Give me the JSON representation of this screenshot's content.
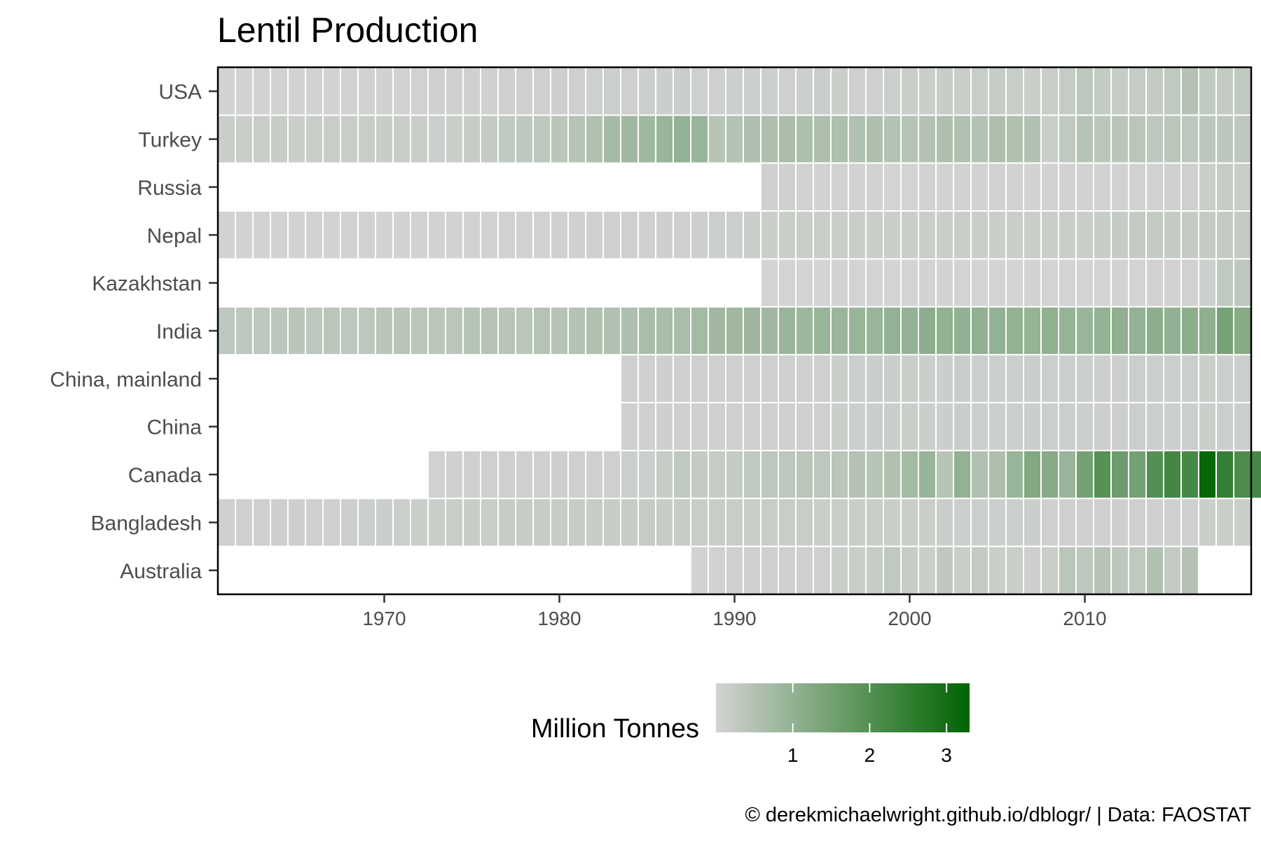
{
  "chart_data": {
    "type": "heatmap",
    "title": "Lentil Production",
    "caption": "© derekmichaelwright.github.io/dblogr/ | Data: FAOSTAT",
    "x_range": [
      1961,
      2019
    ],
    "x_ticks": [
      1970,
      1980,
      1990,
      2000,
      2010
    ],
    "countries": [
      "USA",
      "Turkey",
      "Russia",
      "Nepal",
      "Kazakhstan",
      "India",
      "China, mainland",
      "China",
      "Canada",
      "Bangladesh",
      "Australia"
    ],
    "colorbar": {
      "title": "Million Tonnes",
      "range": [
        0,
        3.3
      ],
      "ticks": [
        1,
        2,
        3
      ],
      "low_color": "#d3d3d3",
      "high_color": "#006400"
    },
    "grid": false,
    "series": [
      {
        "name": "USA",
        "start": 1961,
        "values": [
          0.02,
          0.03,
          0.02,
          0.03,
          0.03,
          0.03,
          0.03,
          0.03,
          0.04,
          0.04,
          0.05,
          0.05,
          0.06,
          0.06,
          0.07,
          0.07,
          0.08,
          0.08,
          0.09,
          0.09,
          0.1,
          0.1,
          0.12,
          0.1,
          0.12,
          0.12,
          0.14,
          0.1,
          0.1,
          0.12,
          0.12,
          0.13,
          0.1,
          0.12,
          0.14,
          0.12,
          0.1,
          0.1,
          0.12,
          0.15,
          0.15,
          0.18,
          0.14,
          0.18,
          0.2,
          0.18,
          0.15,
          0.16,
          0.22,
          0.35,
          0.25,
          0.2,
          0.22,
          0.25,
          0.3,
          0.5,
          0.28,
          0.25,
          0.29
        ]
      },
      {
        "name": "Turkey",
        "start": 1961,
        "values": [
          0.15,
          0.15,
          0.17,
          0.17,
          0.16,
          0.17,
          0.17,
          0.17,
          0.17,
          0.18,
          0.17,
          0.17,
          0.13,
          0.15,
          0.2,
          0.23,
          0.28,
          0.32,
          0.35,
          0.4,
          0.45,
          0.55,
          0.7,
          0.8,
          0.8,
          0.9,
          1.0,
          0.9,
          0.45,
          0.5,
          0.6,
          0.6,
          0.65,
          0.6,
          0.58,
          0.6,
          0.55,
          0.6,
          0.5,
          0.45,
          0.5,
          0.58,
          0.55,
          0.5,
          0.58,
          0.55,
          0.52,
          0.15,
          0.3,
          0.45,
          0.4,
          0.4,
          0.4,
          0.35,
          0.4,
          0.35,
          0.35,
          0.35,
          0.35
        ]
      },
      {
        "name": "Russia",
        "start": 1992,
        "values": [
          0.06,
          0.06,
          0.05,
          0.03,
          0.02,
          0.02,
          0.02,
          0.01,
          0.01,
          0.02,
          0.02,
          0.02,
          0.02,
          0.03,
          0.02,
          0.01,
          0.02,
          0.02,
          0.02,
          0.02,
          0.03,
          0.04,
          0.05,
          0.06,
          0.1,
          0.15,
          0.2,
          0.18
        ]
      },
      {
        "name": "Nepal",
        "start": 1961,
        "values": [
          0.02,
          0.02,
          0.02,
          0.02,
          0.02,
          0.02,
          0.02,
          0.02,
          0.02,
          0.02,
          0.02,
          0.02,
          0.02,
          0.02,
          0.03,
          0.03,
          0.04,
          0.05,
          0.05,
          0.06,
          0.06,
          0.07,
          0.08,
          0.08,
          0.09,
          0.1,
          0.1,
          0.11,
          0.12,
          0.13,
          0.14,
          0.15,
          0.15,
          0.15,
          0.15,
          0.16,
          0.16,
          0.16,
          0.16,
          0.16,
          0.16,
          0.16,
          0.16,
          0.16,
          0.16,
          0.16,
          0.16,
          0.16,
          0.15,
          0.15,
          0.21,
          0.22,
          0.23,
          0.25,
          0.25,
          0.25,
          0.25,
          0.25,
          0.25
        ]
      },
      {
        "name": "Kazakhstan",
        "start": 1992,
        "values": [
          0.01,
          0.01,
          0.01,
          0.01,
          0.01,
          0.01,
          0.01,
          0.01,
          0.01,
          0.01,
          0.01,
          0.01,
          0.01,
          0.01,
          0.01,
          0.01,
          0.01,
          0.01,
          0.01,
          0.01,
          0.01,
          0.01,
          0.02,
          0.03,
          0.05,
          0.1,
          0.3,
          0.35
        ]
      },
      {
        "name": "India",
        "start": 1961,
        "values": [
          0.35,
          0.35,
          0.35,
          0.35,
          0.38,
          0.35,
          0.38,
          0.35,
          0.35,
          0.4,
          0.42,
          0.4,
          0.4,
          0.38,
          0.45,
          0.45,
          0.42,
          0.4,
          0.48,
          0.45,
          0.5,
          0.55,
          0.55,
          0.6,
          0.65,
          0.65,
          0.65,
          0.75,
          0.8,
          0.8,
          0.85,
          0.8,
          0.9,
          0.85,
          0.9,
          0.88,
          0.9,
          0.9,
          1.0,
          0.98,
          1.1,
          1.0,
          1.02,
          1.05,
          1.0,
          1.0,
          0.95,
          1.05,
          0.95,
          0.9,
          1.0,
          1.05,
          1.0,
          1.1,
          1.02,
          1.1,
          1.05,
          1.45,
          1.2
        ]
      },
      {
        "name": "China, mainland",
        "start": 1984,
        "values": [
          0.1,
          0.1,
          0.1,
          0.1,
          0.1,
          0.1,
          0.1,
          0.1,
          0.1,
          0.1,
          0.1,
          0.1,
          0.12,
          0.13,
          0.14,
          0.14,
          0.15,
          0.13,
          0.13,
          0.14,
          0.13,
          0.13,
          0.12,
          0.13,
          0.12,
          0.12,
          0.12,
          0.11,
          0.11,
          0.12,
          0.12,
          0.12,
          0.12,
          0.12,
          0.12,
          0.12
        ]
      },
      {
        "name": "China",
        "start": 1984,
        "values": [
          0.1,
          0.1,
          0.1,
          0.1,
          0.1,
          0.1,
          0.1,
          0.1,
          0.1,
          0.1,
          0.1,
          0.1,
          0.12,
          0.13,
          0.14,
          0.14,
          0.15,
          0.13,
          0.13,
          0.14,
          0.13,
          0.13,
          0.12,
          0.13,
          0.12,
          0.12,
          0.12,
          0.11,
          0.11,
          0.12,
          0.12,
          0.12,
          0.12,
          0.12,
          0.12,
          0.12
        ]
      },
      {
        "name": "Canada",
        "start": 1973,
        "values": [
          0.05,
          0.06,
          0.07,
          0.08,
          0.08,
          0.09,
          0.1,
          0.1,
          0.1,
          0.08,
          0.1,
          0.12,
          0.12,
          0.2,
          0.3,
          0.25,
          0.2,
          0.25,
          0.3,
          0.35,
          0.35,
          0.4,
          0.35,
          0.4,
          0.5,
          0.45,
          0.55,
          0.75,
          0.9,
          0.45,
          1.0,
          0.55,
          0.6,
          0.9,
          1.25,
          1.2,
          0.9,
          1.5,
          1.95,
          1.6,
          1.5,
          2.0,
          2.25,
          2.2,
          3.2,
          2.5,
          2.1,
          2.2
        ]
      },
      {
        "name": "Bangladesh",
        "start": 1961,
        "values": [
          0.1,
          0.1,
          0.1,
          0.1,
          0.1,
          0.1,
          0.1,
          0.11,
          0.12,
          0.12,
          0.13,
          0.15,
          0.16,
          0.17,
          0.18,
          0.19,
          0.2,
          0.2,
          0.21,
          0.2,
          0.2,
          0.2,
          0.2,
          0.21,
          0.22,
          0.2,
          0.2,
          0.19,
          0.18,
          0.18,
          0.17,
          0.17,
          0.17,
          0.17,
          0.16,
          0.16,
          0.17,
          0.16,
          0.15,
          0.16,
          0.15,
          0.14,
          0.13,
          0.12,
          0.12,
          0.12,
          0.12,
          0.1,
          0.08,
          0.08,
          0.08,
          0.08,
          0.08,
          0.08,
          0.1,
          0.1,
          0.12,
          0.15,
          0.15
        ]
      },
      {
        "name": "Australia",
        "start": 1988,
        "values": [
          0.02,
          0.05,
          0.06,
          0.07,
          0.08,
          0.1,
          0.1,
          0.1,
          0.12,
          0.15,
          0.2,
          0.3,
          0.2,
          0.15,
          0.3,
          0.15,
          0.25,
          0.15,
          0.15,
          0.1,
          0.15,
          0.4,
          0.35,
          0.45,
          0.35,
          0.3,
          0.55,
          0.25,
          0.5
        ]
      }
    ]
  }
}
